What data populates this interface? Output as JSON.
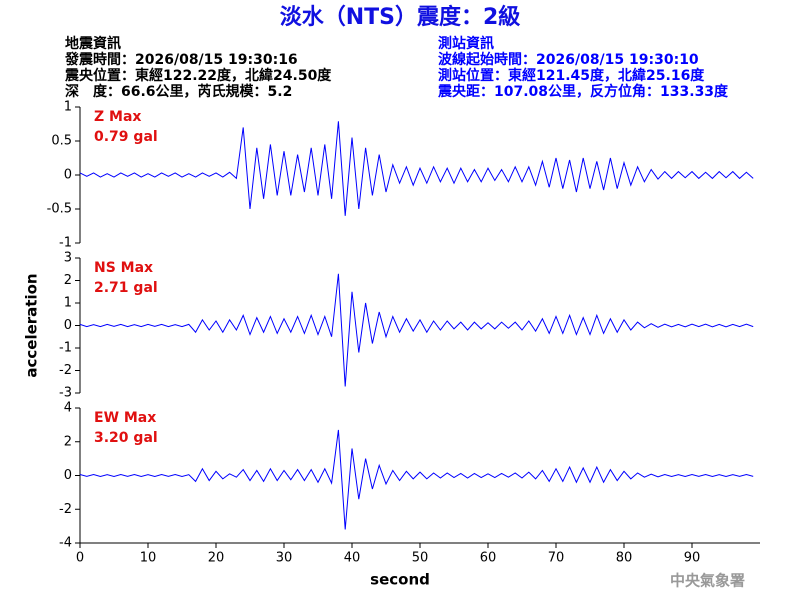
{
  "header": {
    "title": "淡水（NTS）震度：2級",
    "left": [
      "地震資訊",
      "發震時間：2026/08/15 19:30:16",
      "震央位置：東經122.22度，北緯24.50度",
      "深　度：66.6公里，芮氏規模：5.2"
    ],
    "right": [
      "測站資訊",
      "波線起始時間：2026/08/15 19:30:10",
      "測站位置：東經121.45度，北緯25.16度",
      "震央距：107.08公里，反方位角：133.33度"
    ]
  },
  "footer": "中央氣象署",
  "chart_data": [
    {
      "type": "line",
      "annotation": [
        "Z Max",
        "0.79 gal"
      ],
      "color": "#0000ff",
      "xlim": [
        0,
        100
      ],
      "ylim": [
        -1,
        1
      ],
      "yticks": [
        -1,
        -0.5,
        0,
        0.5,
        1
      ],
      "x": [
        0,
        1,
        2,
        3,
        4,
        5,
        6,
        7,
        8,
        9,
        10,
        11,
        12,
        13,
        14,
        15,
        16,
        17,
        18,
        19,
        20,
        21,
        22,
        23,
        24,
        25,
        26,
        27,
        28,
        29,
        30,
        31,
        32,
        33,
        34,
        35,
        36,
        37,
        38,
        39,
        40,
        41,
        42,
        43,
        44,
        45,
        46,
        47,
        48,
        49,
        50,
        51,
        52,
        53,
        54,
        55,
        56,
        57,
        58,
        59,
        60,
        61,
        62,
        63,
        64,
        65,
        66,
        67,
        68,
        69,
        70,
        71,
        72,
        73,
        74,
        75,
        76,
        77,
        78,
        79,
        80,
        81,
        82,
        83,
        84,
        85,
        86,
        87,
        88,
        89,
        90,
        91,
        92,
        93,
        94,
        95,
        96,
        97,
        98,
        99
      ],
      "values": [
        0.03,
        -0.02,
        0.03,
        -0.03,
        0.02,
        -0.03,
        0.03,
        -0.02,
        0.03,
        -0.03,
        0.02,
        -0.03,
        0.03,
        -0.02,
        0.03,
        -0.03,
        0.02,
        -0.03,
        0.03,
        -0.02,
        0.03,
        -0.03,
        0.04,
        -0.05,
        0.7,
        -0.5,
        0.4,
        -0.35,
        0.45,
        -0.3,
        0.35,
        -0.3,
        0.3,
        -0.25,
        0.4,
        -0.3,
        0.45,
        -0.35,
        0.79,
        -0.6,
        0.55,
        -0.5,
        0.4,
        -0.3,
        0.3,
        -0.25,
        0.15,
        -0.12,
        0.12,
        -0.15,
        0.1,
        -0.12,
        0.12,
        -0.1,
        0.1,
        -0.12,
        0.1,
        -0.1,
        0.08,
        -0.1,
        0.1,
        -0.08,
        0.08,
        -0.1,
        0.12,
        -0.1,
        0.12,
        -0.15,
        0.2,
        -0.18,
        0.25,
        -0.2,
        0.22,
        -0.25,
        0.25,
        -0.2,
        0.2,
        -0.22,
        0.25,
        -0.2,
        0.18,
        -0.15,
        0.12,
        -0.1,
        0.08,
        -0.06,
        0.05,
        -0.05,
        0.05,
        -0.04,
        0.05,
        -0.05,
        0.04,
        -0.05,
        0.05,
        -0.04,
        0.05,
        -0.05,
        0.04,
        -0.05
      ]
    },
    {
      "type": "line",
      "annotation": [
        "NS Max",
        "2.71 gal"
      ],
      "color": "#0000ff",
      "xlim": [
        0,
        100
      ],
      "ylim": [
        -3,
        3
      ],
      "yticks": [
        -3,
        -2,
        -1,
        0,
        1,
        2,
        3
      ],
      "y_label": "acceleration",
      "x": [
        0,
        1,
        2,
        3,
        4,
        5,
        6,
        7,
        8,
        9,
        10,
        11,
        12,
        13,
        14,
        15,
        16,
        17,
        18,
        19,
        20,
        21,
        22,
        23,
        24,
        25,
        26,
        27,
        28,
        29,
        30,
        31,
        32,
        33,
        34,
        35,
        36,
        37,
        38,
        39,
        40,
        41,
        42,
        43,
        44,
        45,
        46,
        47,
        48,
        49,
        50,
        51,
        52,
        53,
        54,
        55,
        56,
        57,
        58,
        59,
        60,
        61,
        62,
        63,
        64,
        65,
        66,
        67,
        68,
        69,
        70,
        71,
        72,
        73,
        74,
        75,
        76,
        77,
        78,
        79,
        80,
        81,
        82,
        83,
        84,
        85,
        86,
        87,
        88,
        89,
        90,
        91,
        92,
        93,
        94,
        95,
        96,
        97,
        98,
        99
      ],
      "values": [
        0.05,
        -0.05,
        0.04,
        -0.05,
        0.05,
        -0.04,
        0.05,
        -0.05,
        0.04,
        -0.05,
        0.05,
        -0.04,
        0.05,
        -0.05,
        0.04,
        -0.05,
        0.05,
        -0.3,
        0.25,
        -0.2,
        0.2,
        -0.3,
        0.25,
        -0.2,
        0.45,
        -0.4,
        0.35,
        -0.3,
        0.4,
        -0.35,
        0.3,
        -0.3,
        0.4,
        -0.35,
        0.45,
        -0.4,
        0.4,
        -0.5,
        2.3,
        -2.71,
        1.5,
        -1.2,
        1.0,
        -0.8,
        0.6,
        -0.5,
        0.4,
        -0.3,
        0.3,
        -0.25,
        0.25,
        -0.3,
        0.2,
        -0.2,
        0.2,
        -0.15,
        0.15,
        -0.2,
        0.15,
        -0.15,
        0.12,
        -0.15,
        0.15,
        -0.12,
        0.15,
        -0.2,
        0.2,
        -0.25,
        0.3,
        -0.35,
        0.4,
        -0.35,
        0.45,
        -0.4,
        0.35,
        -0.4,
        0.45,
        -0.35,
        0.3,
        -0.3,
        0.25,
        -0.2,
        0.15,
        -0.1,
        0.08,
        -0.08,
        0.06,
        -0.06,
        0.05,
        -0.06,
        0.06,
        -0.05,
        0.06,
        -0.06,
        0.05,
        -0.06,
        0.05,
        -0.05,
        0.06,
        -0.05
      ]
    },
    {
      "type": "line",
      "annotation": [
        "EW Max",
        "3.20 gal"
      ],
      "color": "#0000ff",
      "xlim": [
        0,
        100
      ],
      "ylim": [
        -4,
        4
      ],
      "yticks": [
        -4,
        -2,
        0,
        2,
        4
      ],
      "xticks": [
        0,
        10,
        20,
        30,
        40,
        50,
        60,
        70,
        80,
        90
      ],
      "x_label": "second",
      "x": [
        0,
        1,
        2,
        3,
        4,
        5,
        6,
        7,
        8,
        9,
        10,
        11,
        12,
        13,
        14,
        15,
        16,
        17,
        18,
        19,
        20,
        21,
        22,
        23,
        24,
        25,
        26,
        27,
        28,
        29,
        30,
        31,
        32,
        33,
        34,
        35,
        36,
        37,
        38,
        39,
        40,
        41,
        42,
        43,
        44,
        45,
        46,
        47,
        48,
        49,
        50,
        51,
        52,
        53,
        54,
        55,
        56,
        57,
        58,
        59,
        60,
        61,
        62,
        63,
        64,
        65,
        66,
        67,
        68,
        69,
        70,
        71,
        72,
        73,
        74,
        75,
        76,
        77,
        78,
        79,
        80,
        81,
        82,
        83,
        84,
        85,
        86,
        87,
        88,
        89,
        90,
        91,
        92,
        93,
        94,
        95,
        96,
        97,
        98,
        99
      ],
      "values": [
        0.06,
        -0.05,
        0.06,
        -0.06,
        0.05,
        -0.06,
        0.06,
        -0.05,
        0.06,
        -0.06,
        0.05,
        -0.06,
        0.06,
        -0.05,
        0.06,
        -0.06,
        0.05,
        -0.35,
        0.4,
        -0.3,
        0.25,
        -0.2,
        0.1,
        -0.1,
        0.35,
        -0.3,
        0.3,
        -0.35,
        0.4,
        -0.3,
        0.3,
        -0.25,
        0.35,
        -0.3,
        0.35,
        -0.4,
        0.4,
        -0.45,
        2.7,
        -3.2,
        1.6,
        -1.4,
        1.0,
        -0.8,
        0.6,
        -0.5,
        0.3,
        -0.3,
        0.25,
        -0.2,
        0.2,
        -0.2,
        0.15,
        -0.15,
        0.15,
        -0.12,
        0.12,
        -0.15,
        0.12,
        -0.12,
        0.1,
        -0.12,
        0.12,
        -0.1,
        0.15,
        -0.15,
        0.2,
        -0.2,
        0.3,
        -0.35,
        0.4,
        -0.35,
        0.5,
        -0.4,
        0.45,
        -0.4,
        0.5,
        -0.4,
        0.35,
        -0.3,
        0.25,
        -0.2,
        0.15,
        -0.1,
        0.08,
        -0.08,
        0.06,
        -0.06,
        0.05,
        -0.06,
        0.06,
        -0.05,
        0.06,
        -0.06,
        0.05,
        -0.06,
        0.05,
        -0.05,
        0.06,
        -0.05
      ]
    }
  ]
}
